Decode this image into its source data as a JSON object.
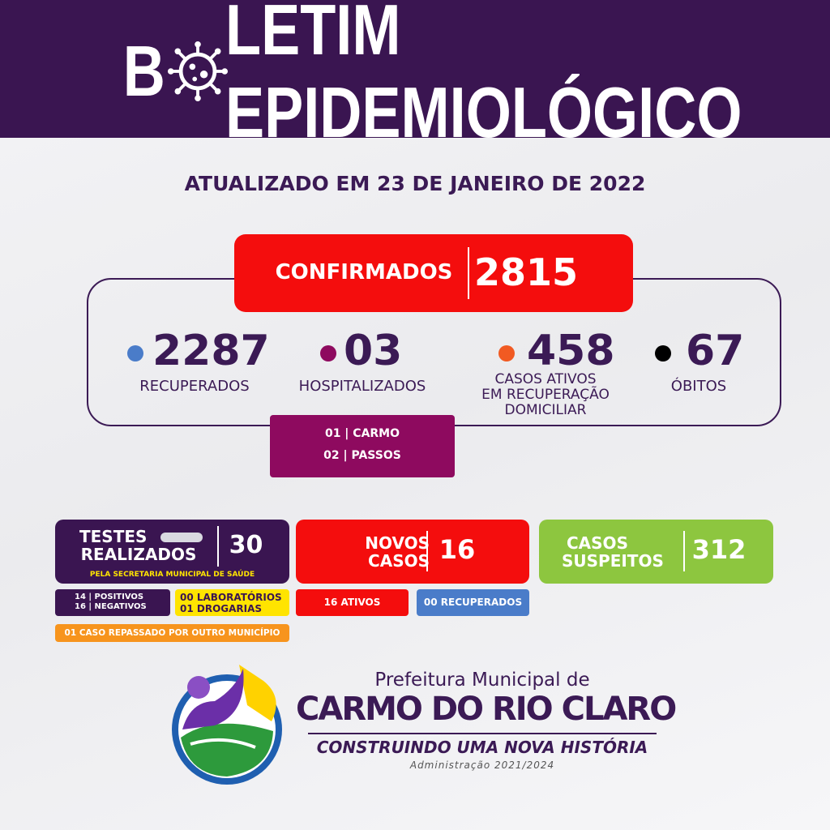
{
  "header": {
    "title_start": "B",
    "title_end": "LETIM EPIDEMIOLÓGICO"
  },
  "updated": "ATUALIZADO EM 23 DE JANEIRO DE 2022",
  "confirmed": {
    "label": "CONFIRMADOS",
    "value": "2815"
  },
  "stats": [
    {
      "value": "2287",
      "label": [
        "RECUPERADOS"
      ]
    },
    {
      "value": "03",
      "label": [
        "HOSPITALIZADOS"
      ]
    },
    {
      "value": "458",
      "label": [
        "CASOS ATIVOS",
        "EM RECUPERAÇÃO",
        "DOMICILIAR"
      ]
    },
    {
      "value": "67",
      "label": [
        "ÓBITOS"
      ]
    }
  ],
  "hospitalized_detail": [
    "01 | CARMO",
    "02 | PASSOS"
  ],
  "tests": {
    "label": [
      "TESTES",
      "REALIZADOS"
    ],
    "value": "30",
    "note": "PELA SECRETARIA MUNICIPAL DE SAÚDE",
    "results": [
      "14 | POSITIVOS",
      "16 | NEGATIVOS"
    ],
    "sources": [
      "00 LABORATÓRIOS",
      "01 DROGARIAS"
    ],
    "transfer": "01 CASO REPASSADO POR OUTRO MUNICÍPIO"
  },
  "new_cases": {
    "label": [
      "NOVOS",
      "CASOS"
    ],
    "value": "16",
    "active": "16 ATIVOS",
    "recovered": "00 RECUPERADOS"
  },
  "suspected": {
    "label": [
      "CASOS",
      "SUSPEITOS"
    ],
    "value": "312"
  },
  "footer": {
    "prefix": "Prefeitura Municipal de",
    "city": "CARMO DO RIO CLARO",
    "slogan": "CONSTRUINDO UMA NOVA HISTÓRIA",
    "term": "Administração 2021/2024"
  }
}
